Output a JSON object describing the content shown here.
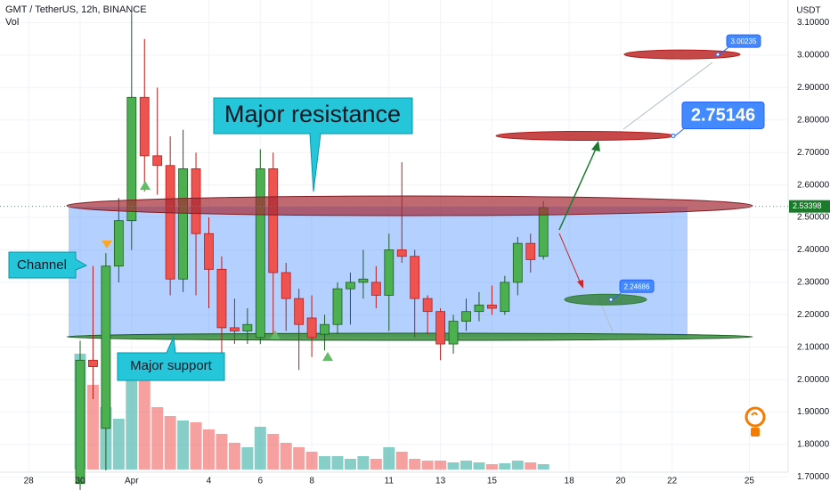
{
  "chart_data": {
    "type": "candlestick",
    "title": "GMT / TetherUS, 12h, BINANCE",
    "volume_label": "Vol",
    "axis_unit": "USDT",
    "ylim": [
      1.66,
      3.17
    ],
    "yticks": [
      {
        "value": 3.1,
        "label": "3.10000"
      },
      {
        "value": 3.0,
        "label": "3.00000"
      },
      {
        "value": 2.9,
        "label": "2.90000"
      },
      {
        "value": 2.8,
        "label": "2.80000"
      },
      {
        "value": 2.7,
        "label": "2.70000"
      },
      {
        "value": 2.6,
        "label": "2.60000"
      },
      {
        "value": 2.5,
        "label": "2.50000"
      },
      {
        "value": 2.4,
        "label": "2.40000"
      },
      {
        "value": 2.3,
        "label": "2.30000"
      },
      {
        "value": 2.2,
        "label": "2.20000"
      },
      {
        "value": 2.1,
        "label": "2.10000"
      },
      {
        "value": 2.0,
        "label": "2.00000"
      },
      {
        "value": 1.9,
        "label": "1.90000"
      },
      {
        "value": 1.8,
        "label": "1.80000"
      },
      {
        "value": 1.7,
        "label": "1.70000"
      }
    ],
    "xticks": [
      {
        "value": -4,
        "label": "28"
      },
      {
        "value": 0,
        "label": "30"
      },
      {
        "value": 4,
        "label": "Apr"
      },
      {
        "value": 10,
        "label": "4"
      },
      {
        "value": 14,
        "label": "6"
      },
      {
        "value": 18,
        "label": "8"
      },
      {
        "value": 24,
        "label": "11"
      },
      {
        "value": 28,
        "label": "13"
      },
      {
        "value": 32,
        "label": "15"
      },
      {
        "value": 38,
        "label": "18"
      },
      {
        "value": 42,
        "label": "20"
      },
      {
        "value": 46,
        "label": "22"
      },
      {
        "value": 52,
        "label": "25"
      }
    ],
    "up_color": "#4caf50",
    "down_color": "#ef5350",
    "candles": [
      {
        "open": 1.68,
        "high": 2.12,
        "low": 1.66,
        "close": 2.06
      },
      {
        "open": 2.06,
        "high": 2.35,
        "low": 1.94,
        "close": 2.04
      },
      {
        "open": 1.85,
        "high": 2.39,
        "low": 1.72,
        "close": 2.35
      },
      {
        "open": 2.35,
        "high": 2.56,
        "low": 2.3,
        "close": 2.49
      },
      {
        "open": 2.49,
        "high": 3.13,
        "low": 2.4,
        "close": 2.87
      },
      {
        "open": 2.87,
        "high": 3.05,
        "low": 2.58,
        "close": 2.69
      },
      {
        "open": 2.69,
        "high": 2.9,
        "low": 2.57,
        "close": 2.66
      },
      {
        "open": 2.66,
        "high": 2.75,
        "low": 2.26,
        "close": 2.31
      },
      {
        "open": 2.31,
        "high": 2.77,
        "low": 2.27,
        "close": 2.65
      },
      {
        "open": 2.65,
        "high": 2.7,
        "low": 2.26,
        "close": 2.45
      },
      {
        "open": 2.45,
        "high": 2.5,
        "low": 2.22,
        "close": 2.34
      },
      {
        "open": 2.34,
        "high": 2.38,
        "low": 2.07,
        "close": 2.16
      },
      {
        "open": 2.16,
        "high": 2.25,
        "low": 2.11,
        "close": 2.15
      },
      {
        "open": 2.15,
        "high": 2.22,
        "low": 2.11,
        "close": 2.17
      },
      {
        "open": 2.13,
        "high": 2.71,
        "low": 2.11,
        "close": 2.65
      },
      {
        "open": 2.65,
        "high": 2.7,
        "low": 2.14,
        "close": 2.33
      },
      {
        "open": 2.33,
        "high": 2.36,
        "low": 2.15,
        "close": 2.25
      },
      {
        "open": 2.25,
        "high": 2.28,
        "low": 2.03,
        "close": 2.17
      },
      {
        "open": 2.19,
        "high": 2.26,
        "low": 2.07,
        "close": 2.13
      },
      {
        "open": 2.14,
        "high": 2.2,
        "low": 2.09,
        "close": 2.17
      },
      {
        "open": 2.17,
        "high": 2.3,
        "low": 2.14,
        "close": 2.28
      },
      {
        "open": 2.28,
        "high": 2.33,
        "low": 2.17,
        "close": 2.3
      },
      {
        "open": 2.3,
        "high": 2.4,
        "low": 2.25,
        "close": 2.31
      },
      {
        "open": 2.3,
        "high": 2.35,
        "low": 2.22,
        "close": 2.26
      },
      {
        "open": 2.26,
        "high": 2.45,
        "low": 2.15,
        "close": 2.4
      },
      {
        "open": 2.4,
        "high": 2.67,
        "low": 2.36,
        "close": 2.38
      },
      {
        "open": 2.38,
        "high": 2.4,
        "low": 2.13,
        "close": 2.25
      },
      {
        "open": 2.25,
        "high": 2.26,
        "low": 2.14,
        "close": 2.21
      },
      {
        "open": 2.21,
        "high": 2.22,
        "low": 2.06,
        "close": 2.11
      },
      {
        "open": 2.11,
        "high": 2.2,
        "low": 2.08,
        "close": 2.18
      },
      {
        "open": 2.18,
        "high": 2.25,
        "low": 2.15,
        "close": 2.21
      },
      {
        "open": 2.21,
        "high": 2.27,
        "low": 2.18,
        "close": 2.23
      },
      {
        "open": 2.23,
        "high": 2.29,
        "low": 2.2,
        "close": 2.22
      },
      {
        "open": 2.21,
        "high": 2.32,
        "low": 2.2,
        "close": 2.3
      },
      {
        "open": 2.3,
        "high": 2.44,
        "low": 2.26,
        "close": 2.42
      },
      {
        "open": 2.42,
        "high": 2.45,
        "low": 2.33,
        "close": 2.37
      },
      {
        "open": 2.38,
        "high": 2.55,
        "low": 2.37,
        "close": 2.53
      }
    ],
    "volume": [
      130,
      95,
      70,
      57,
      130,
      105,
      70,
      60,
      55,
      53,
      45,
      40,
      30,
      25,
      48,
      40,
      30,
      25,
      20,
      15,
      15,
      12,
      15,
      12,
      25,
      20,
      12,
      10,
      10,
      8,
      10,
      8,
      6,
      7,
      10,
      8,
      6
    ],
    "last_price": {
      "value": 2.53398,
      "label": "2.53398"
    },
    "annotations": [
      {
        "text": "Major resistance"
      },
      {
        "text": "Channel"
      },
      {
        "text": "Major support"
      }
    ],
    "targets": [
      {
        "value": 2.75146,
        "label": "2.75146",
        "color": "#b71c1c"
      },
      {
        "value": 3.00235,
        "label": "3.00235",
        "color": "#b71c1c"
      },
      {
        "value": 2.24686,
        "label": "2.24686",
        "color": "#2e7d32"
      }
    ]
  }
}
